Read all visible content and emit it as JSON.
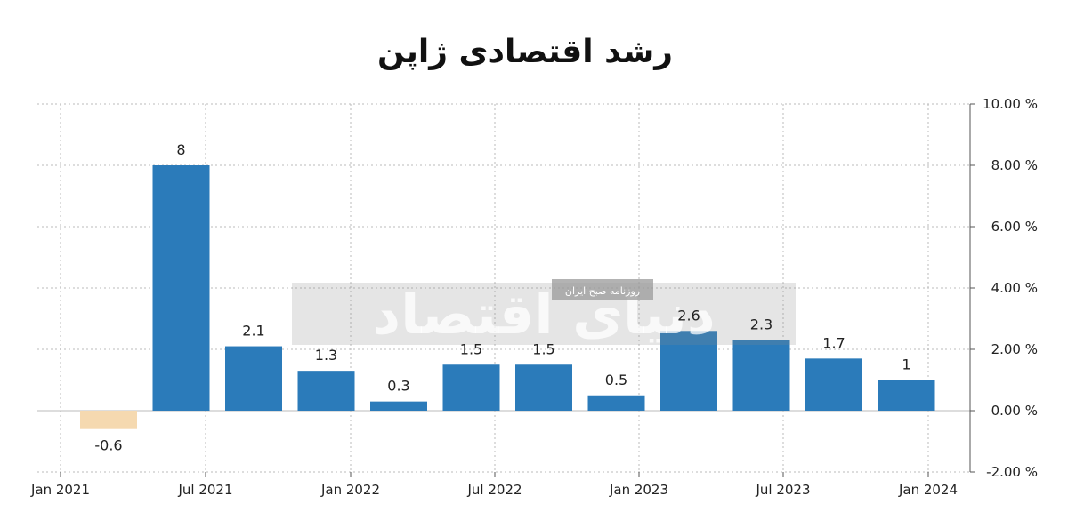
{
  "header": {
    "title": "رشد اقتصادی ژاپن"
  },
  "watermark": {
    "brand": "دنیای اقتصاد",
    "tagline": "روزنامه صبح ایران"
  },
  "chart_data": {
    "type": "bar",
    "title": "رشد اقتصادی ژاپن",
    "x_tick_labels": [
      "Jan 2021",
      "Jul 2021",
      "Jan 2022",
      "Jul 2022",
      "Jan 2023",
      "Jul 2023",
      "Jan 2024"
    ],
    "y_tick_labels": [
      "10.00 %",
      "8.00 %",
      "6.00 %",
      "4.00 %",
      "2.00 %",
      "0.00 %",
      "-2.00 %"
    ],
    "y_ticks": [
      10,
      8,
      6,
      4,
      2,
      0,
      -2
    ],
    "ylim": [
      -2,
      10
    ],
    "values": [
      -0.6,
      8,
      2.1,
      1.3,
      0.3,
      1.5,
      1.5,
      0.5,
      2.6,
      2.3,
      1.7,
      1
    ],
    "value_labels": [
      "-0.6",
      "8",
      "2.1",
      "1.3",
      "0.3",
      "1.5",
      "1.5",
      "0.5",
      "2.6",
      "2.3",
      "1.7",
      "1"
    ],
    "grid": true,
    "y_axis_position": "right",
    "colors": {
      "positive": "#2b7bba",
      "negative": "#f5d9b0",
      "grid": "#bbbbbb",
      "axis": "#555555"
    }
  }
}
